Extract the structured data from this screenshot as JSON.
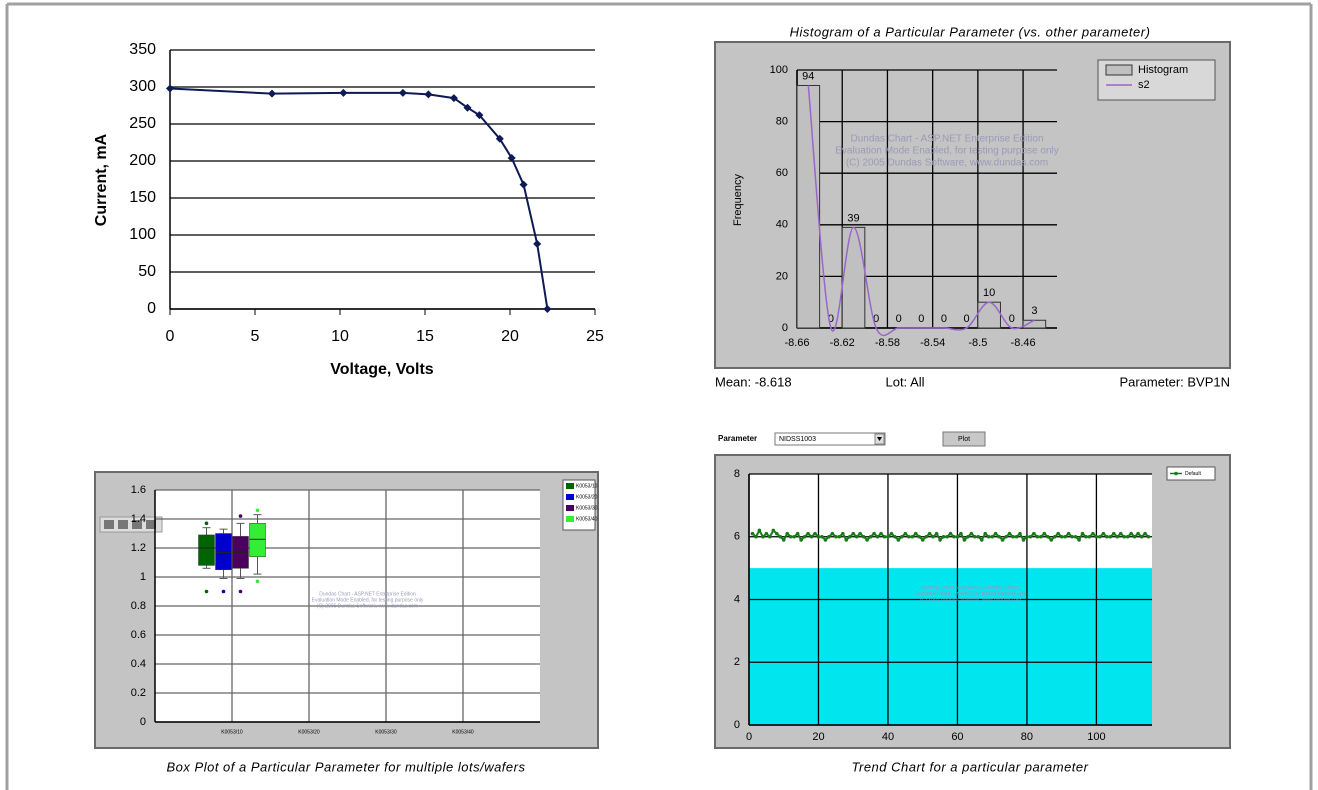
{
  "chart_data": [
    {
      "type": "line",
      "x_label": "Voltage, Volts",
      "y_label": "Current, mA",
      "x": [
        0,
        6,
        10.2,
        13.7,
        15.2,
        16.7,
        17.5,
        18.2,
        19.4,
        20.1,
        20.8,
        21.6,
        22.2
      ],
      "values": [
        298,
        291,
        292,
        292,
        290,
        285,
        272,
        262,
        230,
        204,
        168,
        88,
        0
      ],
      "color": "#0d1a55",
      "xlim": [
        0,
        25
      ],
      "xticks": [
        0,
        5,
        10,
        15,
        20,
        25
      ],
      "ylim": [
        0,
        350
      ],
      "yticks": [
        0,
        50,
        100,
        150,
        200,
        250,
        300,
        350
      ],
      "grid": "y"
    },
    {
      "type": "histogram",
      "title": "Histogram of a Particular Parameter (vs. other parameter)",
      "y_label": "Frequency",
      "bins": [
        -8.66,
        -8.64,
        -8.62,
        -8.6,
        -8.58,
        -8.56,
        -8.54,
        -8.52,
        -8.5,
        -8.48,
        -8.46,
        -8.44
      ],
      "series": [
        {
          "name": "Histogram",
          "color": "#c0c0c0",
          "values": [
            94,
            0,
            39,
            0,
            0,
            0,
            0,
            0,
            10,
            0,
            3
          ]
        },
        {
          "name": "s2",
          "color": "#9966cc",
          "values": [
            94,
            0,
            39,
            0,
            0,
            0,
            0,
            0,
            10,
            0,
            3
          ]
        }
      ],
      "xlim": [
        -8.66,
        -8.43
      ],
      "xticks": [
        -8.66,
        -8.62,
        -8.58,
        -8.54,
        -8.5,
        -8.46
      ],
      "ylim": [
        0,
        100
      ],
      "yticks": [
        0,
        20,
        40,
        60,
        80,
        100
      ],
      "grid": true,
      "legend": "top-right",
      "watermark": [
        "Dundas Chart - ASP.NET Enterprise Edition",
        "Evaluation Mode Enabled, for testing purpose only",
        "(C) 2005 Dundas Software, www.dundas.com"
      ],
      "footer": [
        "Mean: -8.618",
        "Lot: All",
        "Parameter: BVP1N"
      ]
    },
    {
      "type": "box",
      "title": "Box Plot of a Particular Parameter for multiple lots/wafers",
      "categories": [
        "K0053/10",
        "K0053/20",
        "K0053/30",
        "K0053/40"
      ],
      "series": [
        {
          "name": "K0053/10",
          "color": "#006400",
          "whisker_low": 1.06,
          "q1": 1.08,
          "median": 1.2,
          "q3": 1.29,
          "whisker_high": 1.34,
          "outliers": [
            1.37,
            0.9
          ]
        },
        {
          "name": "K0053/20",
          "color": "#0000cc",
          "whisker_low": 0.99,
          "q1": 1.05,
          "median": 1.17,
          "q3": 1.3,
          "whisker_high": 1.33,
          "outliers": [
            0.9
          ]
        },
        {
          "name": "K0053/30",
          "color": "#4b0060",
          "whisker_low": 0.99,
          "q1": 1.06,
          "median": 1.17,
          "q3": 1.28,
          "whisker_high": 1.37,
          "outliers": [
            1.42,
            0.9
          ]
        },
        {
          "name": "K0053/40",
          "color": "#33ee33",
          "whisker_low": 1.02,
          "q1": 1.14,
          "median": 1.26,
          "q3": 1.37,
          "whisker_high": 1.43,
          "outliers": [
            1.46,
            0.97
          ]
        }
      ],
      "ylim": [
        0,
        1.6
      ],
      "yticks": [
        0,
        0.2,
        0.4,
        0.6,
        0.8,
        1,
        1.2,
        1.4,
        1.6
      ],
      "grid": true,
      "legend": "top-right",
      "watermark": [
        "Dundas Chart - ASP.NET Enterprise Edition",
        "Evaluation Mode Enabled, for testing purpose only",
        "(C) 2005 Dundas Software, www.dundas.com"
      ]
    },
    {
      "type": "line",
      "title": "Trend Chart for a particular parameter",
      "controls": {
        "label": "Parameter",
        "select": "NIDSS1003",
        "button": "Plot"
      },
      "x": [
        1,
        2,
        3,
        4,
        5,
        6,
        7,
        8,
        9,
        10,
        11,
        12,
        13,
        14,
        15,
        16,
        17,
        18,
        19,
        20,
        21,
        22,
        23,
        24,
        25,
        26,
        27,
        28,
        29,
        30,
        31,
        32,
        33,
        34,
        35,
        36,
        37,
        38,
        39,
        40,
        41,
        42,
        43,
        44,
        45,
        46,
        47,
        48,
        49,
        50,
        51,
        52,
        53,
        54,
        55,
        56,
        57,
        58,
        59,
        60,
        61,
        62,
        63,
        64,
        65,
        66,
        67,
        68,
        69,
        70,
        71,
        72,
        73,
        74,
        75,
        76,
        77,
        78,
        79,
        80,
        81,
        82,
        83,
        84,
        85,
        86,
        87,
        88,
        89,
        90,
        91,
        92,
        93,
        94,
        95,
        96,
        97,
        98,
        99,
        100,
        101,
        102,
        103,
        104,
        105,
        106,
        107,
        108,
        109,
        110,
        111,
        112,
        113,
        114,
        115
      ],
      "series": [
        {
          "name": "Default",
          "color": "#1a7a1a",
          "values": [
            6.1,
            6.0,
            6.2,
            6.0,
            6.1,
            6.0,
            6.2,
            6.1,
            6.0,
            5.9,
            6.1,
            6.0,
            6.0,
            6.1,
            5.9,
            6.0,
            6.1,
            6.0,
            6.1,
            6.0,
            6.0,
            5.9,
            6.0,
            6.1,
            6.0,
            6.0,
            6.1,
            5.9,
            6.0,
            6.1,
            6.0,
            6.1,
            6.0,
            5.9,
            6.0,
            6.1,
            6.0,
            6.1,
            6.0,
            6.0,
            6.1,
            6.0,
            5.9,
            6.0,
            6.1,
            6.0,
            6.0,
            6.1,
            6.0,
            5.9,
            6.0,
            6.1,
            6.0,
            6.1,
            5.9,
            6.0,
            6.0,
            6.1,
            6.0,
            6.0,
            6.1,
            5.9,
            6.0,
            6.1,
            6.0,
            6.0,
            5.9,
            6.1,
            6.0,
            6.0,
            6.1,
            6.0,
            5.9,
            6.0,
            6.1,
            6.0,
            6.0,
            6.1,
            5.9,
            6.0,
            6.0,
            6.1,
            6.0,
            6.0,
            6.1,
            6.0,
            5.9,
            6.0,
            6.1,
            6.0,
            6.0,
            6.1,
            6.0,
            6.0,
            5.9,
            6.1,
            6.0,
            6.0,
            6.1,
            6.0,
            6.0,
            6.1,
            6.0,
            6.0,
            6.1,
            6.0,
            6.1,
            6.0,
            6.0,
            6.1,
            6.0,
            6.1,
            6.0,
            6.1,
            6.0
          ]
        }
      ],
      "band": [
        0,
        5
      ],
      "band_color": "#00e5ee",
      "xlim": [
        0,
        116
      ],
      "xticks": [
        0,
        20,
        40,
        60,
        80,
        100
      ],
      "ylim": [
        0,
        8
      ],
      "yticks": [
        0,
        2,
        4,
        6,
        8
      ],
      "grid": true,
      "legend": "top-right",
      "watermark": [
        "Dundas Chart - ASP.NET Enterprise Edition",
        "Evaluation Mode Enabled, for testing purpose only",
        "(C) 2005 Dundas Software, www.dundas.com"
      ]
    }
  ]
}
